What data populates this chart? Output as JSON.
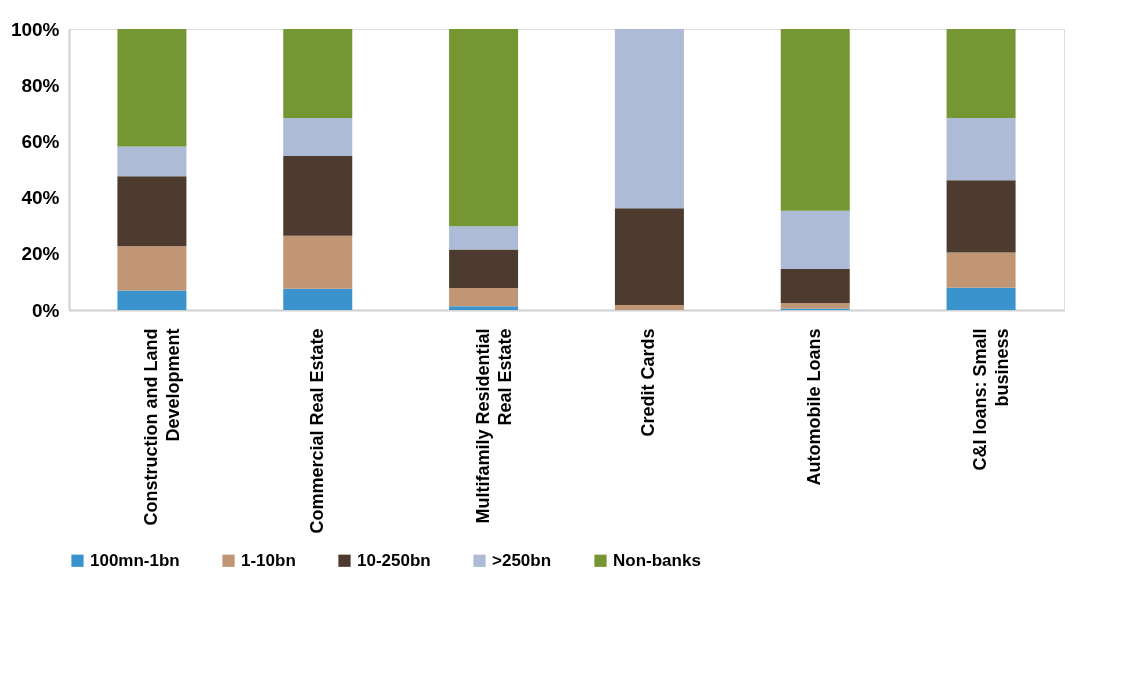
{
  "chart_data": {
    "type": "bar",
    "stacked": true,
    "categories": [
      "Construction and Land Development",
      "Commercial Real Estate",
      "Multifamily Residential Real Estate",
      "Credit Cards",
      "Automobile Loans",
      "C&I loans: Small business"
    ],
    "series": [
      {
        "name": "100mn-1bn",
        "color": "#3a93cc",
        "values": [
          6.9,
          7.6,
          1.3,
          0,
          0.5,
          7.9
        ]
      },
      {
        "name": "1-10bn",
        "color": "#c09675",
        "values": [
          15.8,
          18.8,
          6.5,
          1.8,
          2.0,
          12.6
        ]
      },
      {
        "name": "10-250bn",
        "color": "#4d3b2f",
        "values": [
          24.9,
          28.4,
          13.7,
          34.4,
          12.1,
          25.7
        ]
      },
      {
        "name": ">250bn",
        "color": "#adbbd6",
        "values": [
          10.6,
          13.5,
          8.3,
          63.8,
          20.7,
          22.1
        ]
      },
      {
        "name": "Non-banks",
        "color": "#759632",
        "values": [
          41.8,
          31.7,
          70.2,
          0,
          64.7,
          31.7
        ]
      }
    ],
    "ylim": [
      0,
      100
    ],
    "yticks": [
      {
        "value": 0,
        "label": "0%"
      },
      {
        "value": 20,
        "label": "20%"
      },
      {
        "value": 40,
        "label": "40%"
      },
      {
        "value": 60,
        "label": "60%"
      },
      {
        "value": 80,
        "label": "80%"
      },
      {
        "value": 100,
        "label": "100%"
      }
    ],
    "grid": false,
    "legend": "bottom"
  }
}
